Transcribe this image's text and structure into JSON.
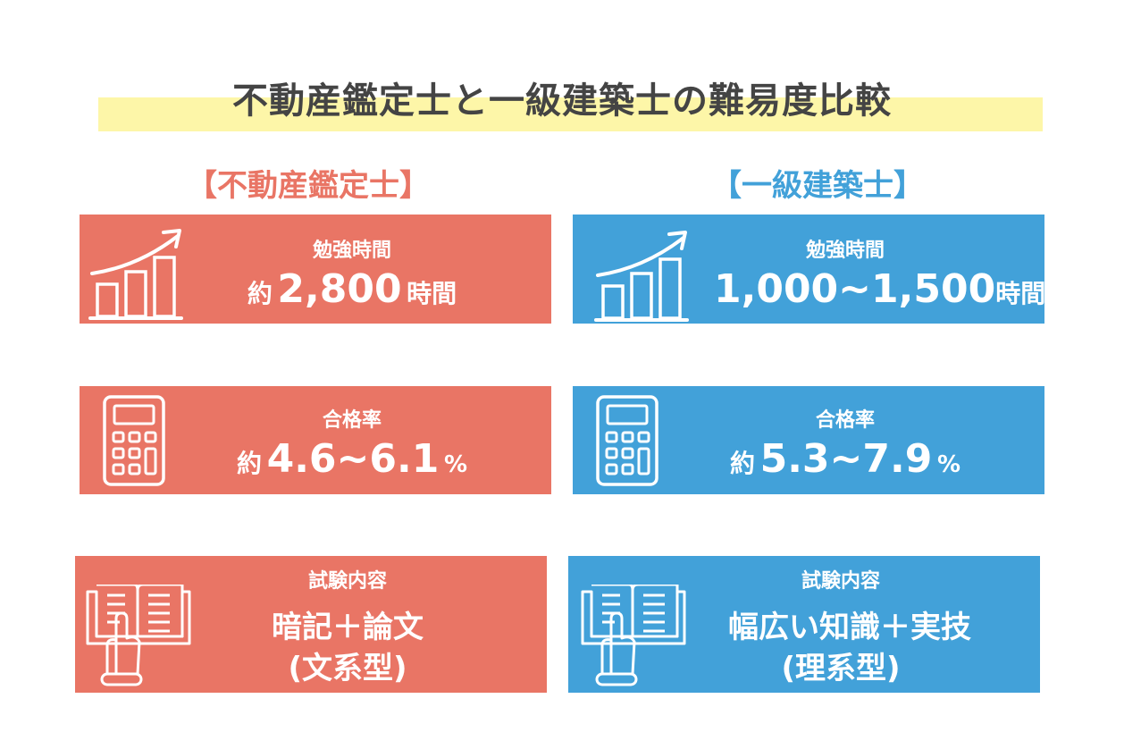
{
  "title": "不動産鑑定士と一級建築士の難易度比較",
  "colors": {
    "left": "#E97565",
    "right": "#42A1D9",
    "highlight": "#FDF6A8",
    "title": "#444444"
  },
  "left": {
    "heading": "【不動産鑑定士】",
    "study": {
      "icon": "bar-chart-growth-icon",
      "label": "勉強時間",
      "prefix": "約",
      "value": "2,800",
      "unit": "時間"
    },
    "pass": {
      "icon": "calculator-icon",
      "label": "合格率",
      "prefix": "約",
      "value": "4.6~6.1",
      "unit": "%"
    },
    "exam": {
      "icon": "book-pointing-hand-icon",
      "label": "試験内容",
      "line1": "暗記＋論文",
      "line2": "(文系型)"
    }
  },
  "right": {
    "heading": "【一級建築士】",
    "study": {
      "icon": "bar-chart-growth-icon",
      "label": "勉強時間",
      "value": "1,000~1,500",
      "unit": "時間"
    },
    "pass": {
      "icon": "calculator-icon",
      "label": "合格率",
      "prefix": "約",
      "value": "5.3~7.9",
      "unit": "%"
    },
    "exam": {
      "icon": "book-pointing-hand-icon",
      "label": "試験内容",
      "line1": "幅広い知識＋実技",
      "line2": "(理系型)"
    }
  }
}
